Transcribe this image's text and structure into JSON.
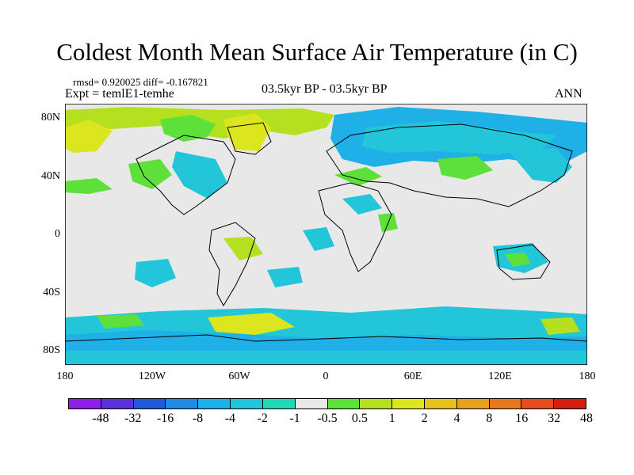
{
  "title": "Coldest Month Mean Surface Air Temperature (in C)",
  "stats": "rmsd= 0.920025 diff= -0.167821",
  "expt": "Expt = temlE1-temhe",
  "period": "03.5kyr BP - 03.5kyr BP",
  "season": "ANN",
  "y_ticks": [
    "80N",
    "40N",
    "0",
    "40S",
    "80S"
  ],
  "x_ticks": [
    "180",
    "120W",
    "60W",
    "0",
    "60E",
    "120E",
    "180"
  ],
  "colorbar": {
    "colors": [
      "#8c1fe8",
      "#5a32d6",
      "#1f5bd6",
      "#1f8ae0",
      "#1fb0e8",
      "#22c6d8",
      "#20d8b4",
      "#e8e8e8",
      "#5ee03a",
      "#b4e01f",
      "#dce61f",
      "#e6c21f",
      "#e6a01f",
      "#e6781f",
      "#e64a1f",
      "#d21f10"
    ],
    "labels": [
      "-48",
      "-32",
      "-16",
      "-8",
      "-4",
      "-2",
      "-1",
      "-0.5",
      "0.5",
      "1",
      "2",
      "4",
      "8",
      "16",
      "32",
      "48"
    ]
  },
  "map_colors": {
    "background": "#e8e8e8",
    "blue": "#22c6d8",
    "deep_blue": "#1fb0e8",
    "green": "#5ee03a",
    "lime": "#b4e01f",
    "yellow": "#dce61f",
    "orange": "#e6c21f",
    "coast": "#000000"
  }
}
